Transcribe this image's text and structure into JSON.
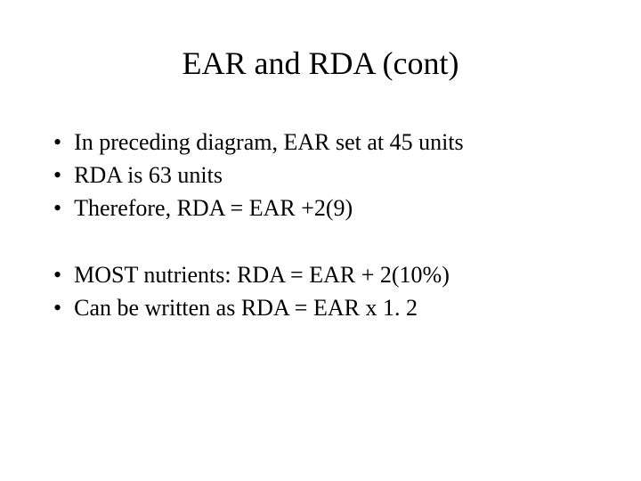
{
  "slide": {
    "title": "EAR and RDA (cont)",
    "group1": {
      "item1": "In preceding diagram, EAR set at 45 units",
      "item2": "RDA is 63 units",
      "item3": "Therefore, RDA = EAR +2(9)"
    },
    "group2": {
      "item1": "MOST nutrients: RDA = EAR + 2(10%)",
      "item2": "Can be written as RDA = EAR x 1. 2"
    }
  },
  "style": {
    "title_fontsize": 36,
    "body_fontsize": 26,
    "font_family": "Times New Roman",
    "background_color": "#ffffff",
    "text_color": "#000000",
    "bullet_char": "•"
  }
}
